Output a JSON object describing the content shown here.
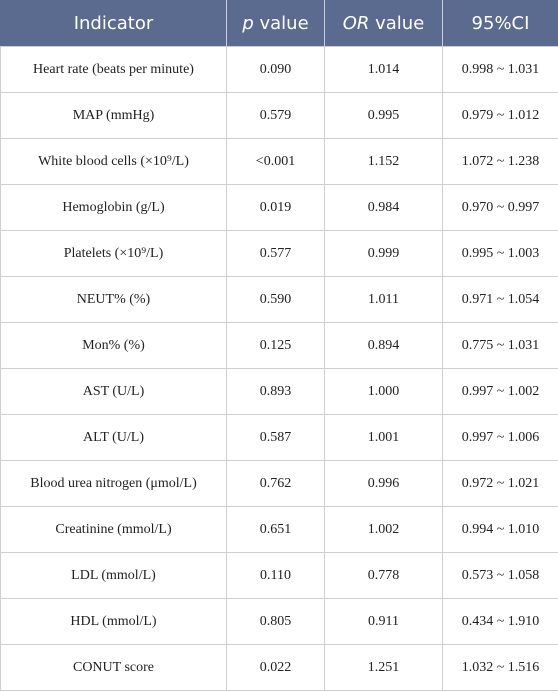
{
  "table": {
    "header": [
      "Indicator",
      "p value",
      "OR value",
      "95%CI"
    ],
    "rows": [
      [
        "Heart rate (beats per minute)",
        "0.090",
        "1.014",
        "0.998 ~ 1.031"
      ],
      [
        "MAP (mmHg)",
        "0.579",
        "0.995",
        "0.979 ~ 1.012"
      ],
      [
        "White blood cells (×10⁹/L)",
        "<0.001",
        "1.152",
        "1.072 ~ 1.238"
      ],
      [
        "Hemoglobin (g/L)",
        "0.019",
        "0.984",
        "0.970 ~ 0.997"
      ],
      [
        "Platelets (×10⁹/L)",
        "0.577",
        "0.999",
        "0.995 ~ 1.003"
      ],
      [
        "NEUT% (%)",
        "0.590",
        "1.011",
        "0.971 ~ 1.054"
      ],
      [
        "Mon% (%)",
        "0.125",
        "0.894",
        "0.775 ~ 1.031"
      ],
      [
        "AST (U/L)",
        "0.893",
        "1.000",
        "0.997 ~ 1.002"
      ],
      [
        "ALT (U/L)",
        "0.587",
        "1.001",
        "0.997 ~ 1.006"
      ],
      [
        "Blood urea nitrogen (μmol/L)",
        "0.762",
        "0.996",
        "0.972 ~ 1.021"
      ],
      [
        "Creatinine (mmol/L)",
        "0.651",
        "1.002",
        "0.994 ~ 1.010"
      ],
      [
        "LDL (mmol/L)",
        "0.110",
        "0.778",
        "0.573 ~ 1.058"
      ],
      [
        "HDL (mmol/L)",
        "0.805",
        "0.911",
        "0.434 ~ 1.910"
      ],
      [
        "CONUT score",
        "0.022",
        "1.251",
        "1.032 ~ 1.516"
      ]
    ]
  }
}
